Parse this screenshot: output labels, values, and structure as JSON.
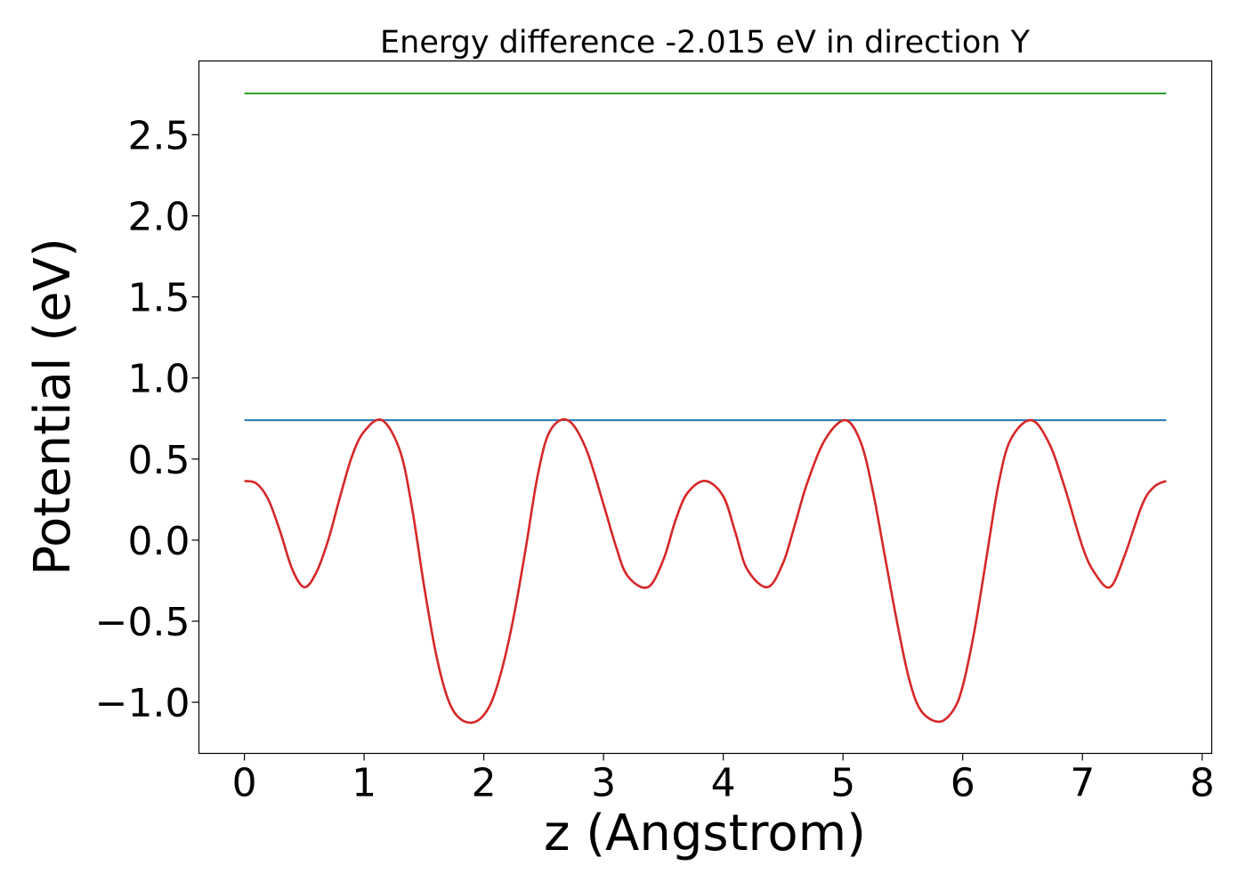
{
  "chart_data": {
    "type": "line",
    "title": "Energy difference -2.015 eV in direction Y",
    "xlabel": "z (Angstrom)",
    "ylabel": "Potential (eV)",
    "xlim": [
      -0.38,
      8.08
    ],
    "ylim": [
      -1.315,
      2.955
    ],
    "xticks": [
      0,
      1,
      2,
      3,
      4,
      5,
      6,
      7,
      8
    ],
    "xtick_labels": [
      "0",
      "1",
      "2",
      "3",
      "4",
      "5",
      "6",
      "7",
      "8"
    ],
    "yticks": [
      -1.0,
      -0.5,
      0.0,
      0.5,
      1.0,
      1.5,
      2.0,
      2.5
    ],
    "ytick_labels": [
      "−1.0",
      "−0.5",
      "0.0",
      "0.5",
      "1.0",
      "1.5",
      "2.0",
      "2.5"
    ],
    "grid": false,
    "legend": "none",
    "series": [
      {
        "color": "#2ca02c",
        "x": [
          0,
          7.7
        ],
        "y": [
          2.755,
          2.755
        ]
      },
      {
        "color": "#1f77b4",
        "x": [
          0,
          7.7
        ],
        "y": [
          0.74,
          0.74
        ]
      },
      {
        "color": "#d62728",
        "x": [
          0,
          0.1,
          0.2,
          0.3,
          0.4,
          0.5,
          0.6,
          0.7,
          0.8,
          0.9,
          1.0,
          1.15,
          1.3,
          1.4,
          1.5,
          1.6,
          1.7,
          1.8,
          1.93,
          2.05,
          2.15,
          2.25,
          2.35,
          2.45,
          2.55,
          2.7,
          2.85,
          3.0,
          3.1,
          3.2,
          3.37,
          3.5,
          3.6,
          3.7,
          3.85,
          4.0,
          4.1,
          4.2,
          4.37,
          4.5,
          4.6,
          4.7,
          4.85,
          5.02,
          5.15,
          5.25,
          5.35,
          5.45,
          5.55,
          5.65,
          5.8,
          5.92,
          6.0,
          6.1,
          6.2,
          6.3,
          6.4,
          6.57,
          6.72,
          6.85,
          7.0,
          7.1,
          7.23,
          7.35,
          7.5,
          7.6,
          7.7
        ],
        "y": [
          0.365,
          0.35,
          0.25,
          0.05,
          -0.18,
          -0.29,
          -0.2,
          0.0,
          0.27,
          0.52,
          0.67,
          0.74,
          0.55,
          0.2,
          -0.28,
          -0.7,
          -0.98,
          -1.1,
          -1.12,
          -1.02,
          -0.8,
          -0.47,
          -0.05,
          0.4,
          0.67,
          0.74,
          0.57,
          0.22,
          -0.03,
          -0.22,
          -0.29,
          -0.12,
          0.12,
          0.29,
          0.365,
          0.27,
          0.05,
          -0.18,
          -0.29,
          -0.14,
          0.1,
          0.35,
          0.62,
          0.74,
          0.6,
          0.3,
          -0.1,
          -0.5,
          -0.85,
          -1.05,
          -1.12,
          -1.05,
          -0.9,
          -0.55,
          -0.1,
          0.35,
          0.62,
          0.74,
          0.6,
          0.33,
          -0.04,
          -0.2,
          -0.29,
          -0.1,
          0.22,
          0.33,
          0.365
        ]
      }
    ]
  }
}
